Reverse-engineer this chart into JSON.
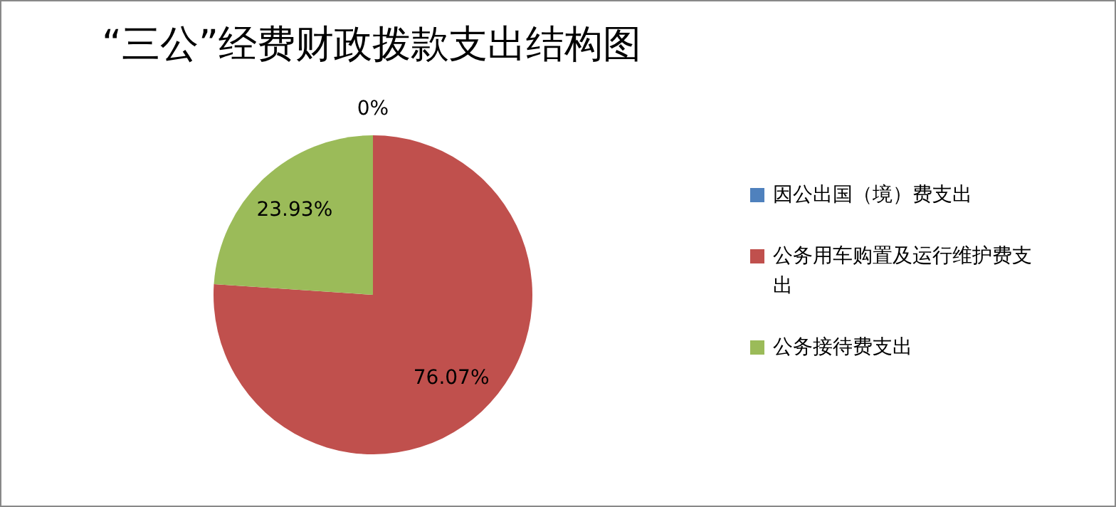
{
  "chart_data": {
    "type": "pie",
    "title": "“三公”经费财政拨款支出结构图",
    "categories": [
      "因公出国（境）费支出",
      "公务用车购置及运行维护费支出",
      "公务接待费支出"
    ],
    "values": [
      0,
      76.07,
      23.93
    ],
    "colors": [
      "#4f81bd",
      "#c0504d",
      "#9bbb59"
    ],
    "value_labels": [
      "0%",
      "76.07%",
      "23.93%"
    ],
    "legend": "right"
  }
}
